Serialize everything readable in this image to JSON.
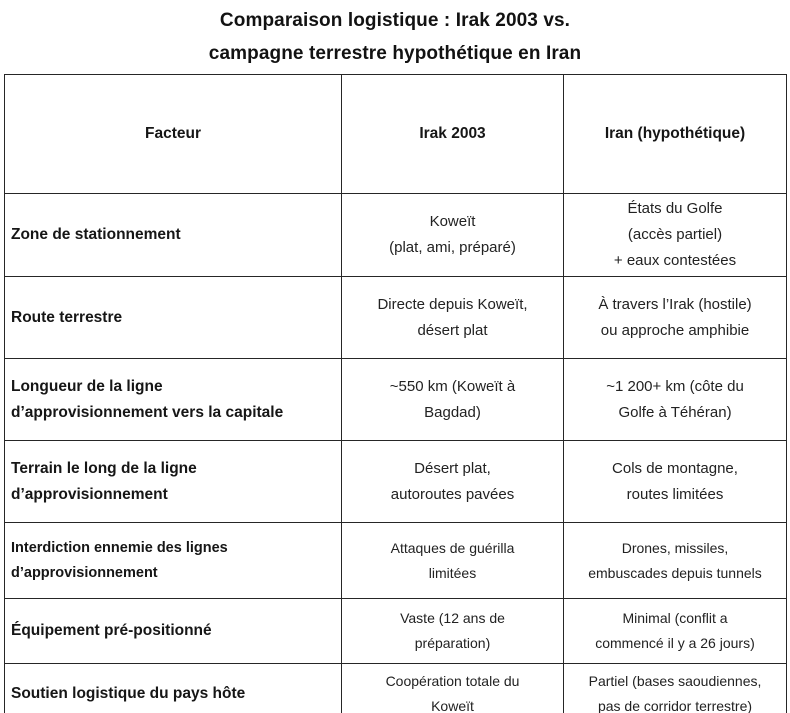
{
  "title": {
    "line1": "Comparaison logistique : Irak 2003 vs.",
    "line2": "campagne terrestre hypothétique en Iran"
  },
  "colors": {
    "background": "#ffffff",
    "text": "#1f1f1f",
    "border": "#262626"
  },
  "table": {
    "headers": [
      "Facteur",
      "Irak 2003",
      "Iran (hypothétique)"
    ],
    "rows": [
      {
        "factor": "Zone de stationnement",
        "irak": "Koweït\n(plat, ami, préparé)",
        "iran": "États du Golfe\n(accès partiel)\n+ eaux contestées"
      },
      {
        "factor": "Route terrestre",
        "irak": "Directe depuis Koweït,\ndésert plat",
        "iran": "À travers l’Irak (hostile)\nou approche amphibie"
      },
      {
        "factor": "Longueur de la ligne\nd’approvisionnement vers la capitale",
        "irak": "~550 km (Koweït à\nBagdad)",
        "iran": "~1 200+ km (côte du\nGolfe à Téhéran)"
      },
      {
        "factor": "Terrain le long de la ligne\nd’approvisionnement",
        "irak": "Désert plat,\nautoroutes pavées",
        "iran": "Cols de montagne,\nroutes limitées"
      },
      {
        "factor": "Interdiction ennemie des lignes\nd’approvisionnement",
        "irak": "Attaques de guérilla\nlimitées",
        "iran": "Drones, missiles,\nembuscades depuis tunnels"
      },
      {
        "factor": "Équipement pré-positionné",
        "irak": "Vaste (12 ans de\npréparation)",
        "iran": "Minimal (conflit a\ncommencé il y a 26 jours)"
      },
      {
        "factor": "Soutien logistique du pays hôte",
        "irak": "Coopération totale du\nKoweït",
        "iran": "Partiel (bases saoudiennes,\npas de corridor terrestre)"
      }
    ]
  }
}
